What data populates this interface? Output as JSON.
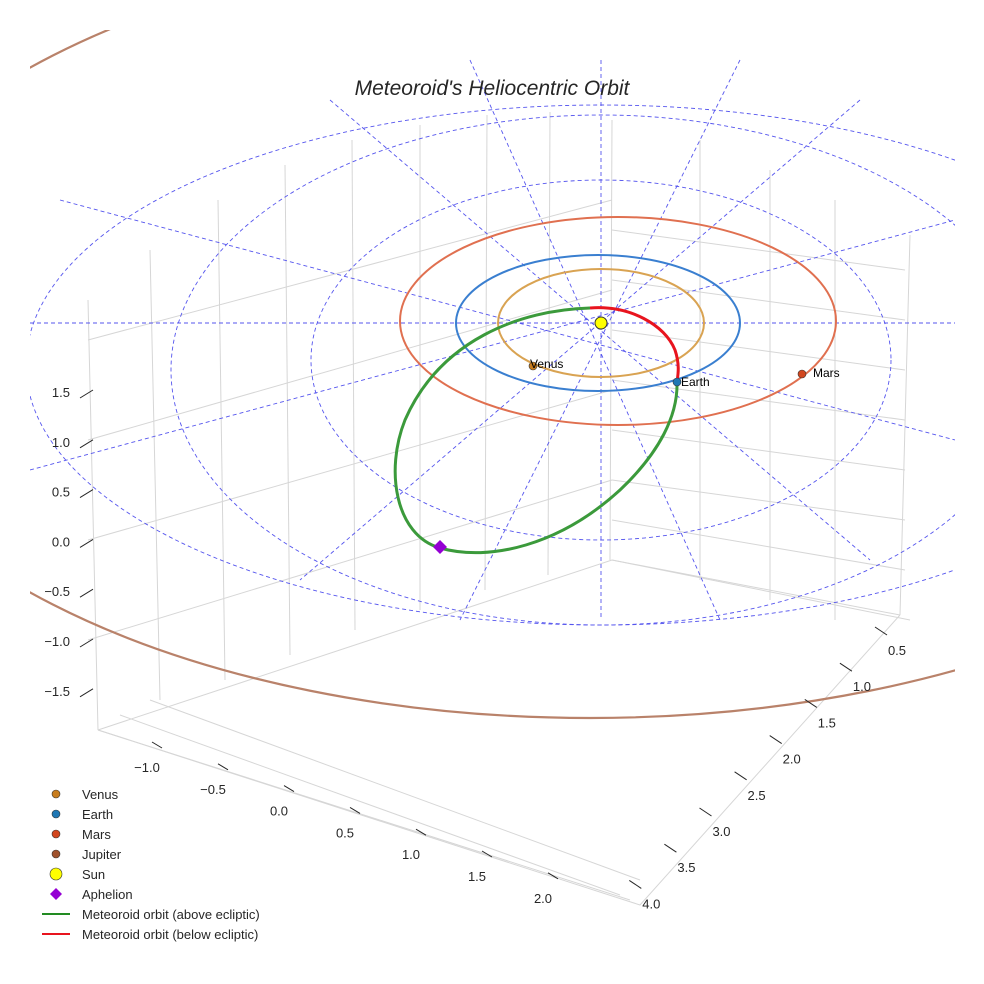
{
  "chart_data": {
    "type": "3d-line",
    "title": "Meteoroid's Heliocentric Orbit",
    "x_axis": {
      "ticks": [
        "−1.0",
        "−0.5",
        "0.0",
        "0.5",
        "1.0",
        "1.5",
        "2.0"
      ]
    },
    "y_axis": {
      "ticks": [
        "0.5",
        "1.0",
        "1.5",
        "2.0",
        "2.5",
        "3.0",
        "3.5",
        "4.0"
      ]
    },
    "z_axis": {
      "ticks": [
        "1.5",
        "1.0",
        "0.5",
        "0.0",
        "−0.5",
        "−1.0",
        "−1.5"
      ]
    },
    "planet_labels": {
      "venus": "Venus",
      "earth": "Earth",
      "mars": "Mars"
    },
    "orbits_au": {
      "venus": 0.72,
      "earth": 1.0,
      "mars": 1.52,
      "jupiter": 5.2
    },
    "legend": [
      {
        "label": "Venus",
        "marker": "circle",
        "color": "#c87d1e"
      },
      {
        "label": "Earth",
        "marker": "circle",
        "color": "#1f77b4"
      },
      {
        "label": "Mars",
        "marker": "circle",
        "color": "#d2461e"
      },
      {
        "label": "Jupiter",
        "marker": "circle",
        "color": "#a0522d"
      },
      {
        "label": "Sun",
        "marker": "circle",
        "color": "#ffff00"
      },
      {
        "label": "Aphelion",
        "marker": "diamond",
        "color": "#9400d3"
      },
      {
        "label": "Meteoroid orbit (above ecliptic)",
        "marker": "line",
        "color": "#228b22"
      },
      {
        "label": "Meteoroid orbit (below ecliptic)",
        "marker": "line",
        "color": "#e8141e"
      }
    ],
    "legend_placement": "bottom-left",
    "grid": true
  }
}
